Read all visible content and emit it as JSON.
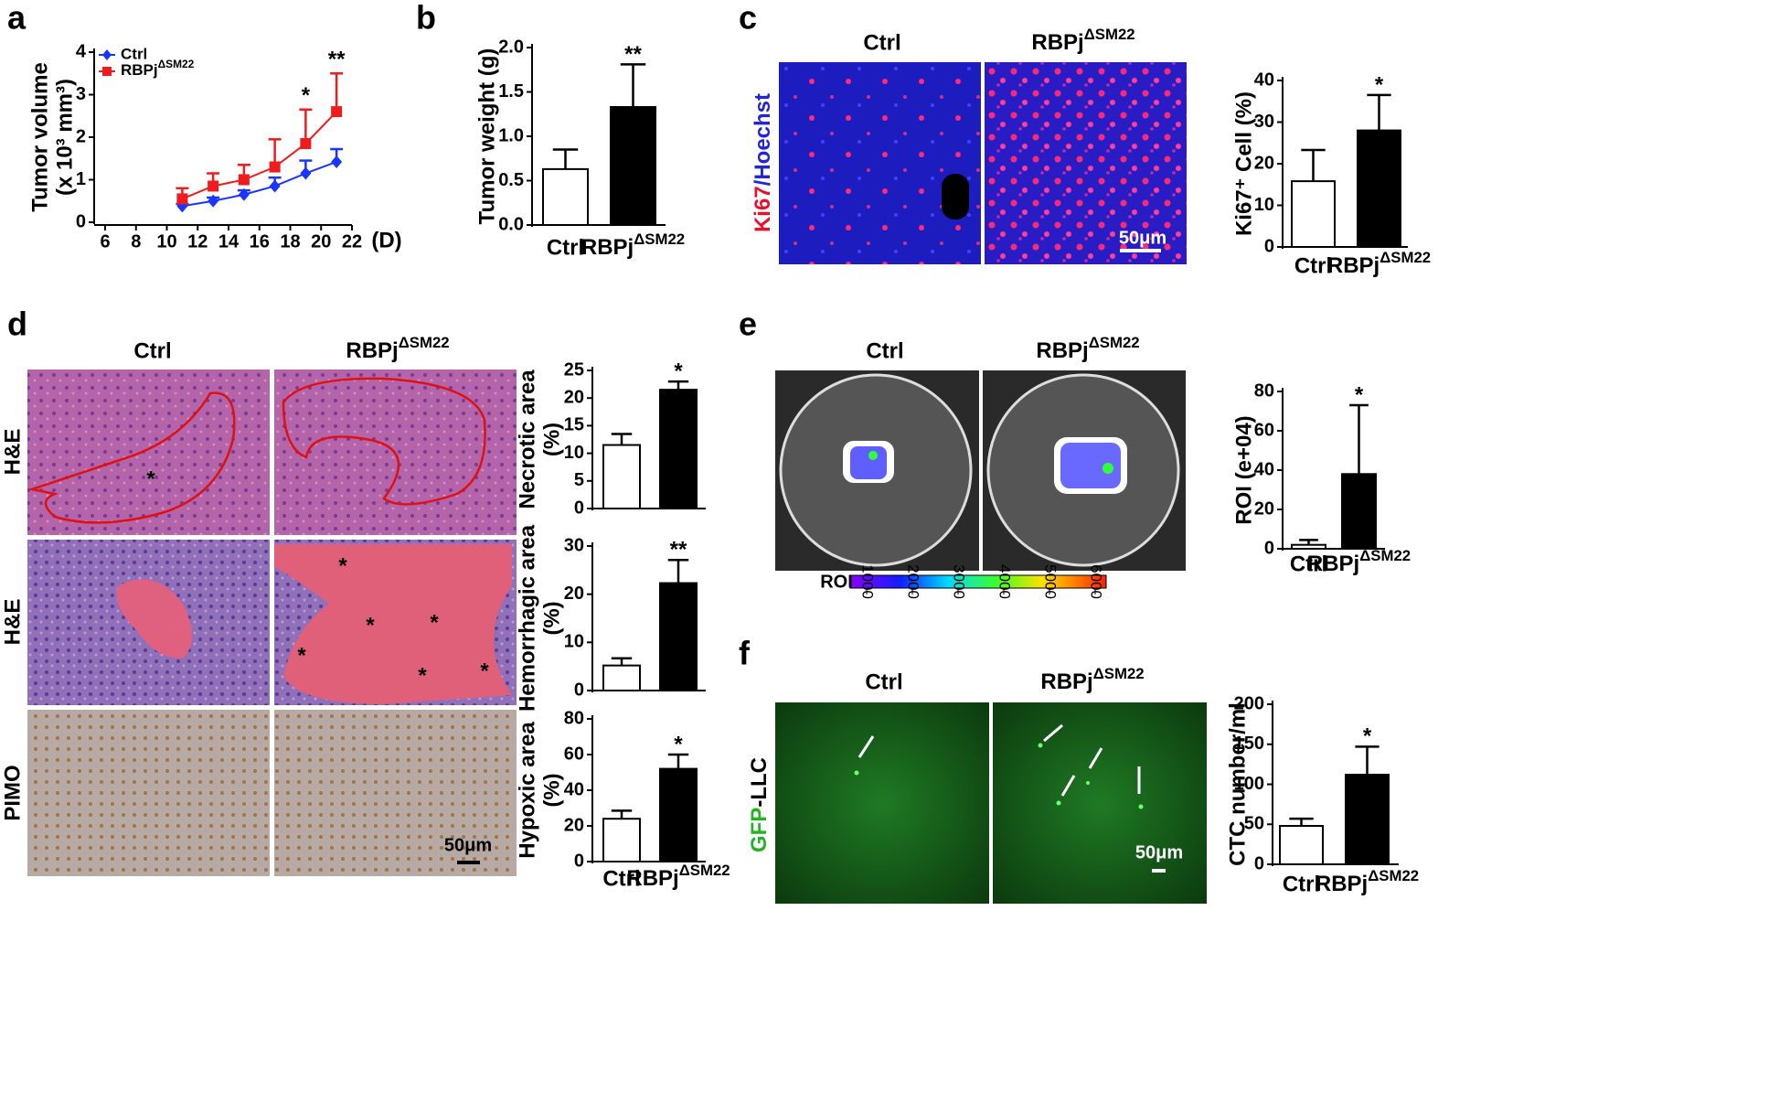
{
  "figure": {
    "panel_letters": [
      "a",
      "b",
      "c",
      "d",
      "e",
      "f"
    ],
    "c": {
      "headers": [
        "Ctrl",
        "RBPjΔSM22"
      ],
      "stain": [
        {
          "text": "Ki67",
          "color": "#e8112d"
        },
        {
          "text": "/Hoechst",
          "color": "#2323d8"
        }
      ],
      "scale_bar": "50μm"
    },
    "d": {
      "headers": [
        "Ctrl",
        "RBPjΔSM22"
      ],
      "rows": [
        "H&E",
        "H&E",
        "PIMO"
      ],
      "scale_bar": "50μm",
      "marks": [
        "*",
        "*",
        "*",
        "*",
        "*",
        "*",
        "*"
      ]
    },
    "e": {
      "headers": [
        "Ctrl",
        "RBPjΔSM22"
      ],
      "colorbar": {
        "label": "ROI",
        "ticks": [
          1000,
          2000,
          3000,
          4000,
          5000,
          6000
        ]
      }
    },
    "f": {
      "headers": [
        "Ctrl",
        "RBPjΔSM22"
      ],
      "stain": [
        {
          "text": "GFP",
          "color": "#22b322"
        },
        {
          "text": "-LLC",
          "color": "#000000"
        }
      ],
      "scale_bar": "50μm"
    }
  },
  "chart_data": [
    {
      "type": "line",
      "ylabel": [
        "Tumor volume",
        "(x 10³ mm³)"
      ],
      "xlabel": "(D)",
      "x": [
        11,
        13,
        15,
        17,
        19,
        21
      ],
      "series": [
        {
          "name": "Ctrl",
          "color": "#1a35ff",
          "marker": "diamond",
          "values": [
            0.38,
            0.5,
            0.65,
            0.85,
            1.15,
            1.42
          ],
          "errors": [
            0.05,
            0.08,
            0.1,
            0.2,
            0.3,
            0.3
          ]
        },
        {
          "name": "RBPjΔSM22",
          "color": "#ee1c1c",
          "marker": "square",
          "values": [
            0.55,
            0.85,
            1.0,
            1.3,
            1.85,
            2.6
          ],
          "errors": [
            0.25,
            0.3,
            0.35,
            0.65,
            0.8,
            0.9
          ]
        }
      ],
      "xlim": [
        6,
        22
      ],
      "xticks": [
        6,
        8,
        10,
        12,
        14,
        16,
        18,
        20,
        22
      ],
      "ylim": [
        0,
        4
      ],
      "yticks": [
        0,
        1,
        2,
        3,
        4
      ],
      "annotations": [
        {
          "text": "*",
          "x": 19
        },
        {
          "text": "**",
          "x": 21
        }
      ]
    },
    {
      "type": "bar",
      "ylabel": "Tumor weight (g)",
      "categories": [
        "Ctrl",
        "RBPjΔSM22"
      ],
      "values": [
        0.63,
        1.33
      ],
      "errors": [
        0.22,
        0.48
      ],
      "colors": [
        "#ffffff",
        "#000000"
      ],
      "ylim": [
        0,
        2
      ],
      "yticks": [
        {
          "value": 0,
          "label": "0.0"
        },
        0.5,
        {
          "value": 1,
          "label": "1.0"
        },
        1.5,
        {
          "value": 2,
          "label": "2.0"
        }
      ],
      "annotation": "**"
    },
    {
      "type": "bar",
      "ylabel": "Ki67⁺ Cell (%)",
      "categories": [
        "Ctrl",
        "RBPjΔSM22"
      ],
      "values": [
        15.8,
        28
      ],
      "errors": [
        7.5,
        8.5
      ],
      "colors": [
        "#ffffff",
        "#000000"
      ],
      "ylim": [
        0,
        40
      ],
      "yticks": [
        0,
        10,
        20,
        30,
        40
      ],
      "annotation": "*"
    },
    {
      "type": "bar",
      "ylabel": [
        "Necrotic area",
        "(%)"
      ],
      "categories": [
        null,
        null
      ],
      "values": [
        11.5,
        21.5
      ],
      "errors": [
        2,
        1.5
      ],
      "colors": [
        "#ffffff",
        "#000000"
      ],
      "ylim": [
        0,
        25
      ],
      "yticks": [
        0,
        5,
        10,
        15,
        20,
        25
      ],
      "annotation": "*"
    },
    {
      "type": "bar",
      "ylabel": [
        "Hemorrhagic area",
        "(%)"
      ],
      "categories": [
        null,
        null
      ],
      "values": [
        5.2,
        22.3
      ],
      "errors": [
        1.5,
        4.8
      ],
      "colors": [
        "#ffffff",
        "#000000"
      ],
      "ylim": [
        0,
        30
      ],
      "yticks": [
        0,
        10,
        20,
        30
      ],
      "annotation": "**"
    },
    {
      "type": "bar",
      "ylabel": [
        "Hypoxic area",
        "(%)"
      ],
      "categories": [
        "Ctrl",
        "RBPjΔSM22"
      ],
      "values": [
        24,
        52
      ],
      "errors": [
        4.5,
        8
      ],
      "colors": [
        "#ffffff",
        "#000000"
      ],
      "ylim": [
        0,
        80
      ],
      "yticks": [
        0,
        20,
        40,
        60,
        80
      ],
      "annotation": "*"
    },
    {
      "type": "bar",
      "ylabel": "ROI (e+04)",
      "categories": [
        "Ctrl",
        "RBPjΔSM22"
      ],
      "values": [
        2,
        38
      ],
      "errors": [
        2.5,
        35
      ],
      "colors": [
        "#ffffff",
        "#000000"
      ],
      "ylim": [
        0,
        80
      ],
      "yticks": [
        0,
        20,
        40,
        60,
        80
      ],
      "annotation": "*"
    },
    {
      "type": "bar",
      "ylabel": "CTC number/ml",
      "categories": [
        "Ctrl",
        "RBPjΔSM22"
      ],
      "values": [
        48,
        112
      ],
      "errors": [
        9,
        35
      ],
      "colors": [
        "#ffffff",
        "#000000"
      ],
      "ylim": [
        0,
        200
      ],
      "yticks": [
        0,
        50,
        100,
        150,
        200
      ],
      "annotation": "*"
    }
  ]
}
